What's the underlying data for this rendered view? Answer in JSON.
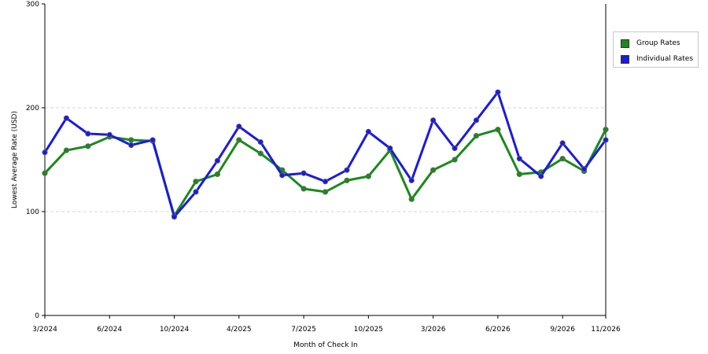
{
  "chart_data": {
    "type": "line",
    "xlabel": "Month of Check In",
    "ylabel": "Lowest Average Rate (USD)",
    "ylim": [
      0,
      300
    ],
    "yticks": [
      "0",
      "100",
      "200",
      "300"
    ],
    "xtick_labels": [
      {
        "index": 0,
        "label": "3/2024"
      },
      {
        "index": 3,
        "label": "6/2024"
      },
      {
        "index": 6,
        "label": "10/2024"
      },
      {
        "index": 9,
        "label": "4/2025"
      },
      {
        "index": 12,
        "label": "7/2025"
      },
      {
        "index": 15,
        "label": "10/2025"
      },
      {
        "index": 18,
        "label": "3/2026"
      },
      {
        "index": 21,
        "label": "6/2026"
      },
      {
        "index": 24,
        "label": "9/2026"
      },
      {
        "index": 26,
        "label": "11/2026"
      }
    ],
    "grid": true,
    "legend_position": "top-right",
    "series": [
      {
        "name": "Group Rates",
        "color": "#1a8a1a",
        "values": [
          137,
          159,
          163,
          172,
          169,
          168,
          96,
          129,
          136,
          169,
          156,
          140,
          122,
          119,
          130,
          134,
          159,
          112,
          140,
          150,
          173,
          179,
          136,
          138,
          151,
          139,
          179
        ]
      },
      {
        "name": "Individual Rates",
        "color": "#1a1ae0",
        "values": [
          157,
          190,
          175,
          174,
          164,
          169,
          95,
          119,
          149,
          182,
          167,
          135,
          137,
          129,
          140,
          177,
          161,
          130,
          188,
          161,
          188,
          215,
          151,
          134,
          166,
          141,
          169
        ]
      }
    ]
  }
}
